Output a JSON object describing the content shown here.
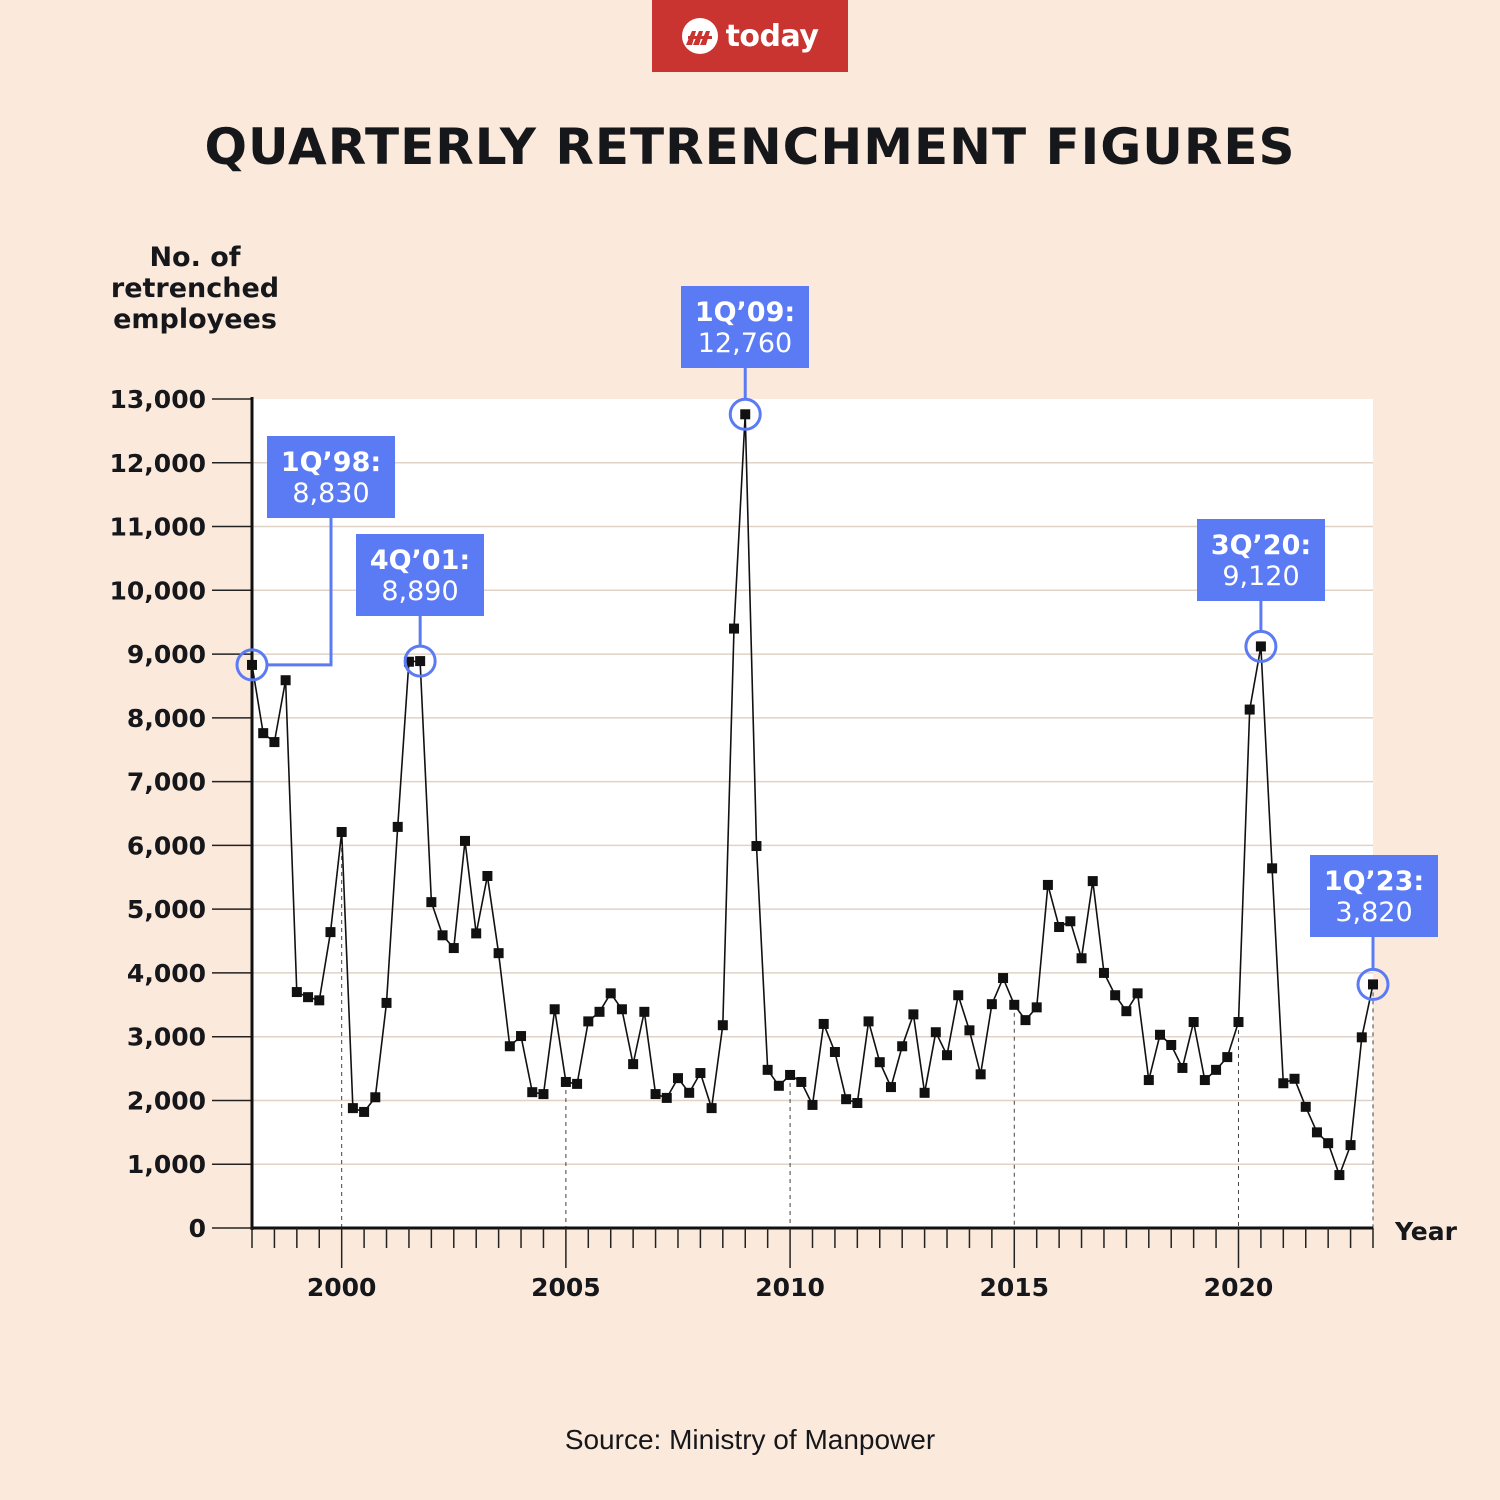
{
  "header": {
    "logo_text": "today",
    "title": "QUARTERLY RETRENCHMENT FIGURES"
  },
  "y_axis_label": [
    "No. of",
    "retrenched",
    "employees"
  ],
  "source": "Source: Ministry of Manpower",
  "colors": {
    "background": "#fbe9dc",
    "plot_background": "#ffffff",
    "logo_red": "#c93431",
    "callout_blue": "#5b7bf5",
    "line": "#111111",
    "grid": "#e0d2c6"
  },
  "chart_data": {
    "type": "line",
    "title": "QUARTERLY RETRENCHMENT FIGURES",
    "xlabel": "Year",
    "ylabel": "No. of retrenched employees",
    "ylim": [
      0,
      13000
    ],
    "xlim": [
      1998,
      2023
    ],
    "grid": true,
    "y_ticks": [
      0,
      1000,
      2000,
      3000,
      4000,
      5000,
      6000,
      7000,
      8000,
      9000,
      10000,
      11000,
      12000,
      13000
    ],
    "y_tick_labels": [
      "0",
      "1,000",
      "2,000",
      "3,000",
      "4,000",
      "5,000",
      "6,000",
      "7,000",
      "8,000",
      "9,000",
      "10,000",
      "11,000",
      "12,000",
      "13,000"
    ],
    "x_major_ticks": [
      2000,
      2005,
      2010,
      2015,
      2020
    ],
    "x_major_labels": [
      "2000",
      "2005",
      "2010",
      "2015",
      "2020"
    ],
    "start_year": 1998,
    "quarters_per_year": 4,
    "series": [
      {
        "name": "Retrenched employees",
        "values": [
          8830,
          7760,
          7620,
          8590,
          3700,
          3620,
          3570,
          4640,
          6210,
          1880,
          1820,
          2050,
          3530,
          6290,
          8880,
          8890,
          5110,
          4590,
          4390,
          6070,
          4620,
          5520,
          4310,
          2850,
          3010,
          2130,
          2100,
          3430,
          2290,
          2260,
          3240,
          3390,
          3680,
          3430,
          2570,
          3390,
          2100,
          2040,
          2350,
          2120,
          2430,
          1880,
          3180,
          9400,
          12760,
          5990,
          2480,
          2230,
          2400,
          2290,
          1930,
          3200,
          2760,
          2020,
          1960,
          3240,
          2600,
          2210,
          2850,
          3350,
          2120,
          3070,
          2710,
          3650,
          3100,
          2410,
          3510,
          3920,
          3500,
          3260,
          3460,
          5380,
          4720,
          4810,
          4230,
          5440,
          4000,
          3650,
          3400,
          3680,
          2320,
          3030,
          2870,
          2510,
          3230,
          2320,
          2480,
          2680,
          3230,
          8130,
          9120,
          5640,
          2270,
          2340,
          1900,
          1500,
          1330,
          830,
          1300,
          2990,
          3820
        ]
      }
    ],
    "annotations": [
      {
        "index": 0,
        "label": "1Q’98:",
        "value_text": "8,830",
        "value": 8830
      },
      {
        "index": 15,
        "label": "4Q’01:",
        "value_text": "8,890",
        "value": 8890
      },
      {
        "index": 44,
        "label": "1Q’09:",
        "value_text": "12,760",
        "value": 12760
      },
      {
        "index": 90,
        "label": "3Q’20:",
        "value_text": "9,120",
        "value": 9120
      },
      {
        "index": 100,
        "label": "1Q’23:",
        "value_text": "3,820",
        "value": 3820
      }
    ]
  }
}
